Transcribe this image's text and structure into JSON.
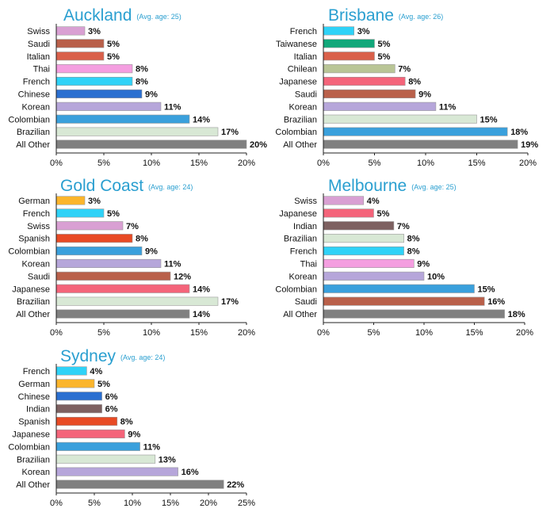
{
  "colors": {
    "Swiss": "#d9a0d3",
    "Saudi": "#b9604a",
    "Italian": "#d9604a",
    "Thai": "#f49ee0",
    "French": "#2fd2f7",
    "Chinese": "#2a6fd0",
    "Korean": "#b6a6da",
    "Colombian": "#3aa0dc",
    "Brazilian": "#d8e8d5",
    "All Other": "#808080",
    "Taiwanese": "#12a87a",
    "Chilean": "#b9c596",
    "Japanese": "#f4647a",
    "German": "#fbb52c",
    "Spanish": "#e84a24",
    "Indian": "#7d6060"
  },
  "chart_data": [
    {
      "type": "bar",
      "orientation": "horizontal",
      "title": "Auckland",
      "subtitle": "(Avg. age: 25)",
      "categories": [
        "Swiss",
        "Saudi",
        "Italian",
        "Thai",
        "French",
        "Chinese",
        "Korean",
        "Colombian",
        "Brazilian",
        "All Other"
      ],
      "values": [
        3,
        5,
        5,
        8,
        8,
        9,
        11,
        14,
        17,
        20
      ],
      "value_labels": [
        "3%",
        "5%",
        "5%",
        "8%",
        "8%",
        "9%",
        "11%",
        "14%",
        "17%",
        "20%"
      ],
      "xlim": [
        0,
        20
      ],
      "xticks": [
        0,
        5,
        10,
        15,
        20
      ],
      "xtick_labels": [
        "0%",
        "5%",
        "10%",
        "15%",
        "20%"
      ]
    },
    {
      "type": "bar",
      "orientation": "horizontal",
      "title": "Brisbane",
      "subtitle": "(Avg. age: 26)",
      "categories": [
        "French",
        "Taiwanese",
        "Italian",
        "Chilean",
        "Japanese",
        "Saudi",
        "Korean",
        "Brazilian",
        "Colombian",
        "All Other"
      ],
      "values": [
        3,
        5,
        5,
        7,
        8,
        9,
        11,
        15,
        18,
        19
      ],
      "value_labels": [
        "3%",
        "5%",
        "5%",
        "7%",
        "8%",
        "9%",
        "11%",
        "15%",
        "18%",
        "19%"
      ],
      "xlim": [
        0,
        20
      ],
      "xticks": [
        0,
        5,
        10,
        15,
        20
      ],
      "xtick_labels": [
        "0%",
        "5%",
        "10%",
        "15%",
        "20%"
      ]
    },
    {
      "type": "bar",
      "orientation": "horizontal",
      "title": "Gold Coast",
      "subtitle": "(Avg. age: 24)",
      "categories": [
        "German",
        "French",
        "Swiss",
        "Spanish",
        "Colombian",
        "Korean",
        "Saudi",
        "Japanese",
        "Brazilian",
        "All Other"
      ],
      "values": [
        3,
        5,
        7,
        8,
        9,
        11,
        12,
        14,
        17,
        14
      ],
      "value_labels": [
        "3%",
        "5%",
        "7%",
        "8%",
        "9%",
        "11%",
        "12%",
        "14%",
        "17%",
        "14%"
      ],
      "xlim": [
        0,
        20
      ],
      "xticks": [
        0,
        5,
        10,
        15,
        20
      ],
      "xtick_labels": [
        "0%",
        "5%",
        "10%",
        "15%",
        "20%"
      ]
    },
    {
      "type": "bar",
      "orientation": "horizontal",
      "title": "Melbourne",
      "subtitle": "(Avg. age: 25)",
      "categories": [
        "Swiss",
        "Japanese",
        "Indian",
        "Brazilian",
        "French",
        "Thai",
        "Korean",
        "Colombian",
        "Saudi",
        "All Other"
      ],
      "values": [
        4,
        5,
        7,
        8,
        8,
        9,
        10,
        15,
        16,
        18
      ],
      "value_labels": [
        "4%",
        "5%",
        "7%",
        "8%",
        "8%",
        "9%",
        "10%",
        "15%",
        "16%",
        "18%"
      ],
      "xlim": [
        0,
        20
      ],
      "xticks": [
        0,
        5,
        10,
        15,
        20
      ],
      "xtick_labels": [
        "0%",
        "5%",
        "10%",
        "15%",
        "20%"
      ]
    },
    {
      "type": "bar",
      "orientation": "horizontal",
      "title": "Sydney",
      "subtitle": "(Avg. age: 24)",
      "categories": [
        "French",
        "German",
        "Chinese",
        "Indian",
        "Spanish",
        "Japanese",
        "Colombian",
        "Brazilian",
        "Korean",
        "All Other"
      ],
      "values": [
        4,
        5,
        6,
        6,
        8,
        9,
        11,
        13,
        16,
        22
      ],
      "value_labels": [
        "4%",
        "5%",
        "6%",
        "6%",
        "8%",
        "9%",
        "11%",
        "13%",
        "16%",
        "22%"
      ],
      "xlim": [
        0,
        25
      ],
      "xticks": [
        0,
        5,
        10,
        15,
        20,
        25
      ],
      "xtick_labels": [
        "0%",
        "5%",
        "10%",
        "15%",
        "20%",
        "25%"
      ]
    }
  ]
}
